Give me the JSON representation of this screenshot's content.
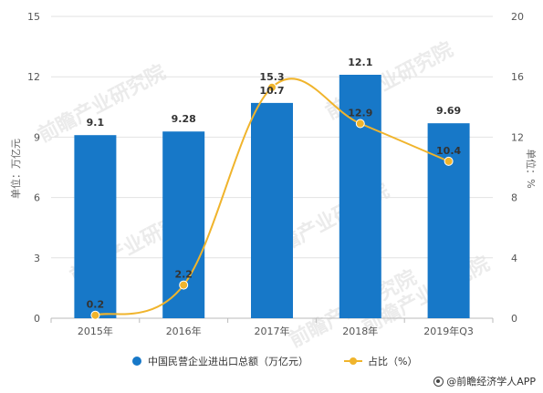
{
  "chart_data": {
    "type": "bar+line",
    "categories": [
      "2015年",
      "2016年",
      "2017年",
      "2018年",
      "2019年Q3"
    ],
    "bar_series": {
      "name": "中国民营企业进出口总额（万亿元）",
      "values": [
        9.1,
        9.28,
        10.7,
        12.1,
        9.69
      ],
      "labels": [
        "9.1",
        "9.28",
        "10.7",
        "12.1",
        "9.69"
      ],
      "color": "#1778c8"
    },
    "line_series": {
      "name": "占比（%）",
      "values": [
        0.2,
        2.2,
        15.3,
        12.9,
        10.4
      ],
      "labels": [
        "0.2",
        "2.2",
        "15.3",
        "12.9",
        "10.4"
      ],
      "color": "#f0b42c"
    },
    "y_left": {
      "label": "单位：万亿元",
      "min": 0,
      "max": 15,
      "ticks": [
        0,
        3,
        6,
        9,
        12,
        15
      ]
    },
    "y_right": {
      "label": "单位：%",
      "min": 0,
      "max": 20,
      "ticks": [
        0,
        4,
        8,
        12,
        16,
        20
      ]
    },
    "grid": true,
    "legend_position": "bottom"
  },
  "watermark": "前瞻产业研究院",
  "source": "@前瞻经济学人APP"
}
